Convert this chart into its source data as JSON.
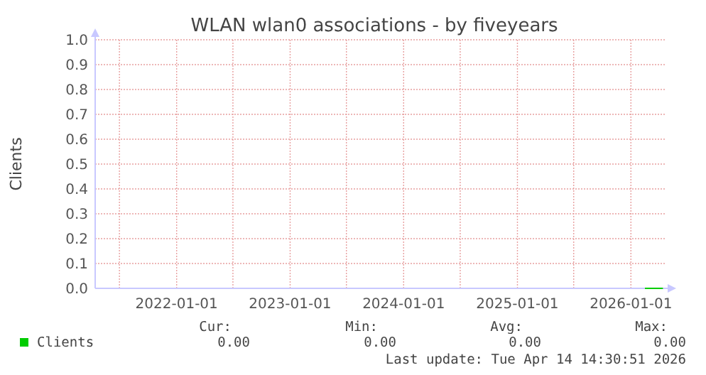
{
  "chart_data": {
    "type": "line",
    "title": "WLAN wlan0 associations - by fiveyears",
    "ylabel": "Clients",
    "xlim": [
      "2021-04-14",
      "2026-04-20"
    ],
    "xticks": [
      {
        "value": "2021-07-01",
        "label": null
      },
      {
        "value": "2022-01-01",
        "label": "2022-01-01"
      },
      {
        "value": "2022-07-01",
        "label": null
      },
      {
        "value": "2023-01-01",
        "label": "2023-01-01"
      },
      {
        "value": "2023-07-01",
        "label": null
      },
      {
        "value": "2024-01-01",
        "label": "2024-01-01"
      },
      {
        "value": "2024-07-01",
        "label": null
      },
      {
        "value": "2025-01-01",
        "label": "2025-01-01"
      },
      {
        "value": "2025-07-01",
        "label": null
      },
      {
        "value": "2026-01-01",
        "label": "2026-01-01"
      }
    ],
    "ylim": [
      0,
      1
    ],
    "yticks": [
      {
        "value": 0,
        "label": "0.0"
      },
      {
        "value": 0.1,
        "label": "0.1"
      },
      {
        "value": 0.2,
        "label": "0.2"
      },
      {
        "value": 0.3,
        "label": "0.3"
      },
      {
        "value": 0.4,
        "label": "0.4"
      },
      {
        "value": 0.5,
        "label": "0.5"
      },
      {
        "value": 0.6,
        "label": "0.6"
      },
      {
        "value": 0.7,
        "label": "0.7"
      },
      {
        "value": 0.8,
        "label": "0.8"
      },
      {
        "value": 0.9,
        "label": "0.9"
      },
      {
        "value": 1,
        "label": "1.0"
      }
    ],
    "grid": true,
    "legend": "bottom left",
    "series": [
      {
        "name": "Clients",
        "color": "#00cc00",
        "x": [
          "2026-02-15",
          "2026-03-01",
          "2026-03-15",
          "2026-04-01",
          "2026-04-14"
        ],
        "values": [
          0,
          0,
          0,
          0,
          0
        ]
      }
    ],
    "annotations": [
      "Cur:",
      "Min:",
      "Avg:",
      "Max:",
      "0.00",
      "0.00",
      "0.00",
      "0.00",
      "Last update: Tue Apr 14 14:30:51 2026"
    ]
  }
}
